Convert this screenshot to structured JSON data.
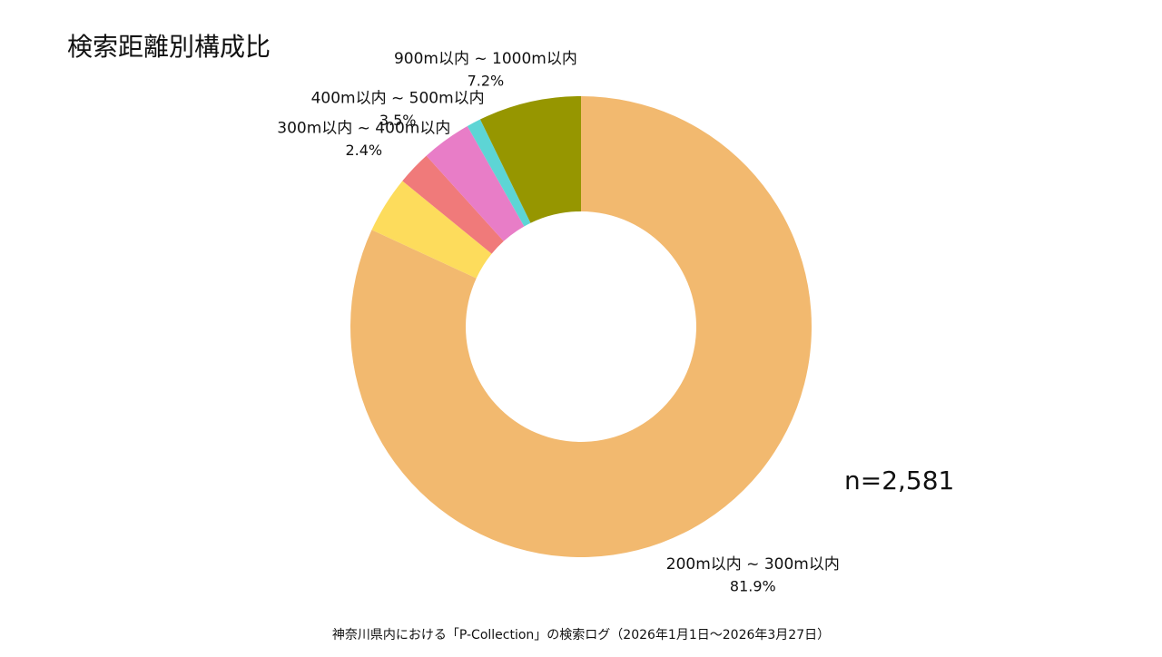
{
  "chart_data": {
    "type": "donut",
    "title": "検索距離別構成比",
    "categories": [
      "200m以内 ~ 300m以内",
      null,
      "300m以内 ~ 400m以内",
      "400m以内 ~ 500m以内",
      null,
      "900m以内 ~ 1000m以内"
    ],
    "values": [
      81.9,
      4.0,
      2.4,
      3.5,
      1.0,
      7.2
    ],
    "value_labels": [
      "81.9%",
      null,
      "2.4%",
      "3.5%",
      null,
      "7.2%"
    ],
    "colors": [
      "#f2b96f",
      "#fddc5c",
      "#f07a7a",
      "#e87dc7",
      "#5dd5d5",
      "#969600"
    ],
    "annotation": "n=2,581",
    "footnote": "神奈川県内における「P-Collection」の検索ログ（2026年1月1日～2026年3月27日）"
  }
}
